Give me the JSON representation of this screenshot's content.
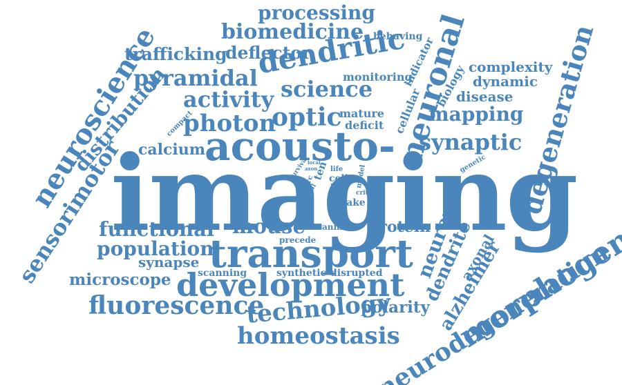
{
  "colors": {
    "word": "#4a86bc",
    "background": "#ffffff"
  },
  "words": [
    {
      "text": "imaging"
    },
    {
      "text": "acousto-"
    },
    {
      "text": "transport"
    },
    {
      "text": "development"
    },
    {
      "text": "neurodegeneration"
    },
    {
      "text": "morphogenesis"
    },
    {
      "text": "neuroscience"
    },
    {
      "text": "neuronal"
    },
    {
      "text": "degeneration"
    },
    {
      "text": "dendritic"
    },
    {
      "text": "processing"
    },
    {
      "text": "biomedicine"
    },
    {
      "text": "trafficking"
    },
    {
      "text": "deflector"
    },
    {
      "text": "pyramidal"
    },
    {
      "text": "science"
    },
    {
      "text": "activity"
    },
    {
      "text": "photon"
    },
    {
      "text": "optic"
    },
    {
      "text": "synaptic"
    },
    {
      "text": "mapping"
    },
    {
      "text": "disease"
    },
    {
      "text": "dynamic"
    },
    {
      "text": "complexity"
    },
    {
      "text": "biology"
    },
    {
      "text": "behaving"
    },
    {
      "text": "indicator"
    },
    {
      "text": "cellular"
    },
    {
      "text": "monitoring"
    },
    {
      "text": "mature"
    },
    {
      "text": "deficit"
    },
    {
      "text": "distribution"
    },
    {
      "text": "sensorimotor"
    },
    {
      "text": "calcium"
    },
    {
      "text": "compact"
    },
    {
      "text": "functional"
    },
    {
      "text": "mouse"
    },
    {
      "text": "protein"
    },
    {
      "text": "population"
    },
    {
      "text": "synapse"
    },
    {
      "text": "microscope"
    },
    {
      "text": "scanning"
    },
    {
      "text": "synthetic"
    },
    {
      "text": "disrupted"
    },
    {
      "text": "fluorescence"
    },
    {
      "text": "technology"
    },
    {
      "text": "polarity"
    },
    {
      "text": "homeostasis"
    },
    {
      "text": "neuron"
    },
    {
      "text": "dendrite"
    },
    {
      "text": "axonal"
    },
    {
      "text": "alzheimer"
    },
    {
      "text": "awake"
    },
    {
      "text": "animal"
    },
    {
      "text": "precede"
    },
    {
      "text": "cell"
    },
    {
      "text": "loss"
    },
    {
      "text": "life"
    },
    {
      "text": "model"
    },
    {
      "text": "critical"
    },
    {
      "text": "genetic"
    },
    {
      "text": "ten"
    },
    {
      "text": "arc"
    },
    {
      "text": "distal"
    },
    {
      "text": "survival"
    },
    {
      "text": "space"
    },
    {
      "text": "local"
    },
    {
      "text": "axon"
    }
  ]
}
